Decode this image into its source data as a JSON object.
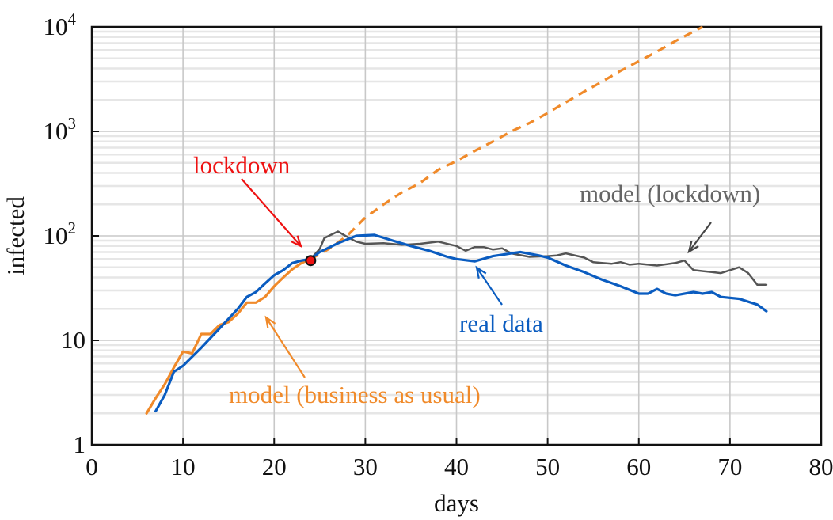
{
  "chart_data": {
    "type": "line",
    "xlabel": "days",
    "ylabel": "infected",
    "xlim": [
      0,
      80
    ],
    "ylim": [
      1,
      10000
    ],
    "yscale": "log",
    "xticks": [
      0,
      10,
      20,
      30,
      40,
      50,
      60,
      70,
      80
    ],
    "xtick_labels": [
      "0",
      "10",
      "20",
      "30",
      "40",
      "50",
      "60",
      "70",
      "80"
    ],
    "yticks": [
      1,
      10,
      100,
      1000,
      10000
    ],
    "ytick_labels": [
      {
        "base": "1",
        "exp": ""
      },
      {
        "base": "10",
        "exp": ""
      },
      {
        "base": "10",
        "exp": "2"
      },
      {
        "base": "10",
        "exp": "3"
      },
      {
        "base": "10",
        "exp": "4"
      }
    ],
    "grid": true,
    "colors": {
      "real": "#0a5cc0",
      "bau": "#f08a2a",
      "lockdown_model": "#555555",
      "lockdown": "#ee1111"
    },
    "series": [
      {
        "name": "real data",
        "style": "solid",
        "color": "#0a5cc0",
        "x": [
          7,
          8,
          9,
          10,
          12,
          14,
          16,
          17,
          18,
          19,
          20,
          21,
          22,
          23,
          24,
          25,
          27,
          29,
          31,
          33,
          35,
          37,
          39,
          40,
          42,
          44,
          46,
          47,
          49,
          50,
          52,
          54,
          56,
          58,
          60,
          61,
          62,
          63,
          64,
          66,
          67,
          68,
          69,
          71,
          73,
          74
        ],
        "y": [
          2.1,
          3,
          5,
          5.7,
          8.5,
          13,
          20,
          26,
          29,
          35,
          42,
          47,
          55,
          58,
          60,
          70,
          85,
          100,
          102,
          90,
          80,
          72,
          63,
          60,
          57,
          64,
          68,
          70,
          65,
          62,
          52,
          45,
          38,
          33,
          28,
          28,
          31,
          28,
          27,
          29,
          28,
          29,
          26,
          25,
          22,
          19
        ]
      },
      {
        "name": "model (business as usual)",
        "style": "solid",
        "color": "#f08a2a",
        "x": [
          6,
          7,
          8,
          9,
          10,
          11,
          12,
          13,
          14,
          15,
          16,
          17,
          18,
          19,
          20,
          21,
          22,
          23,
          24
        ],
        "y": [
          2,
          2.8,
          3.8,
          5.5,
          7.8,
          7.5,
          11.5,
          11.5,
          14,
          15,
          18,
          23,
          23,
          26,
          33,
          40,
          48,
          55,
          60
        ]
      },
      {
        "name": "model (business as usual) projection",
        "style": "dashed",
        "color": "#f08a2a",
        "x": [
          24,
          26,
          28,
          30,
          32,
          34,
          36,
          38,
          40,
          42,
          44,
          46,
          48,
          50,
          52,
          54,
          56,
          58,
          60,
          62,
          64,
          66,
          67
        ],
        "y": [
          60,
          75,
          100,
          150,
          200,
          260,
          320,
          430,
          520,
          650,
          800,
          1000,
          1200,
          1500,
          1900,
          2400,
          3000,
          3800,
          4700,
          5800,
          7300,
          9000,
          10000
        ]
      },
      {
        "name": "model (lockdown)",
        "style": "solid",
        "color": "#555555",
        "x": [
          24,
          25,
          25.5,
          26,
          27,
          28,
          29,
          30,
          32,
          34,
          36,
          38,
          40,
          41,
          42,
          43,
          44,
          45,
          46,
          48,
          50,
          51,
          52,
          54,
          55,
          57,
          58,
          59,
          60,
          62,
          64,
          65,
          66,
          68,
          69,
          71,
          72,
          73,
          74
        ],
        "y": [
          60,
          75,
          95,
          100,
          110,
          98,
          88,
          84,
          85,
          82,
          84,
          88,
          80,
          72,
          78,
          78,
          74,
          76,
          68,
          63,
          64,
          65,
          68,
          62,
          56,
          54,
          56,
          53,
          54,
          52,
          55,
          58,
          47,
          45,
          44,
          50,
          44,
          34,
          34
        ]
      }
    ],
    "marker": {
      "name": "lockdown",
      "x": 24,
      "y": 58
    },
    "annotations": [
      {
        "id": "lockdown",
        "text": "lockdown",
        "color": "#ee1111"
      },
      {
        "id": "lockdown_model",
        "text": "model (lockdown)",
        "color": "#666666"
      },
      {
        "id": "real",
        "text": "real data",
        "color": "#0a5cc0"
      },
      {
        "id": "bau",
        "text": "model (business as usual)",
        "color": "#f08a2a"
      }
    ]
  }
}
